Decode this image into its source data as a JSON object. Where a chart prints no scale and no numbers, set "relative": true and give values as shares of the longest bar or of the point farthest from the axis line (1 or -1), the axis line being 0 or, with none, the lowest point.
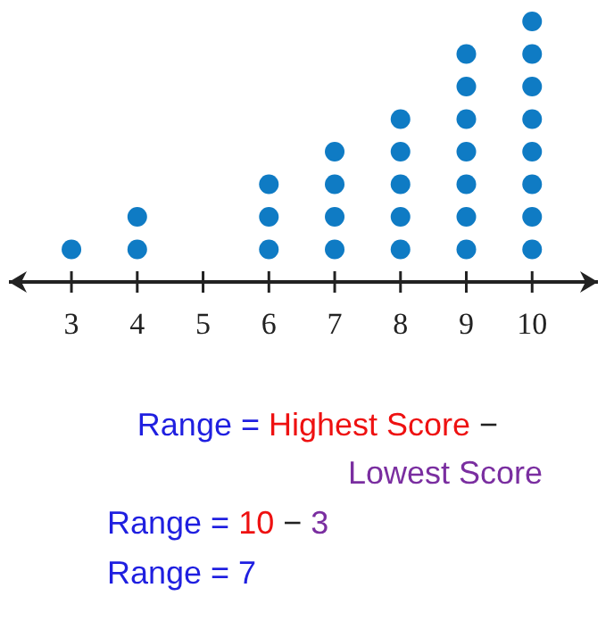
{
  "chart_data": {
    "type": "scatter",
    "x": [
      3,
      4,
      4,
      6,
      6,
      6,
      7,
      7,
      7,
      7,
      8,
      8,
      8,
      8,
      8,
      9,
      9,
      9,
      9,
      9,
      9,
      9,
      10,
      10,
      10,
      10,
      10,
      10,
      10,
      10
    ],
    "values": [
      0.125,
      0.125,
      0.25,
      0.125,
      0.25,
      0.375,
      0.125,
      0.25,
      0.375,
      0.5,
      0.125,
      0.25,
      0.375,
      0.5,
      0.625,
      0.125,
      0.25,
      0.375,
      0.5,
      0.625,
      0.75,
      0.875,
      0.125,
      0.25,
      0.375,
      0.5,
      0.625,
      0.75,
      0.875,
      1
    ],
    "relative": true,
    "color": "#0f7bc4",
    "marker": "circle",
    "xlim": [
      2.05,
      11
    ],
    "xticks": [
      3,
      4,
      5,
      6,
      7,
      8,
      9,
      10
    ],
    "tick_labels": "x",
    "grid": false,
    "annotations": [
      "Range =",
      "Highest Score",
      "−",
      "Lowest Score",
      "Range =",
      "10",
      "−",
      "3",
      "Range = 7"
    ]
  }
}
